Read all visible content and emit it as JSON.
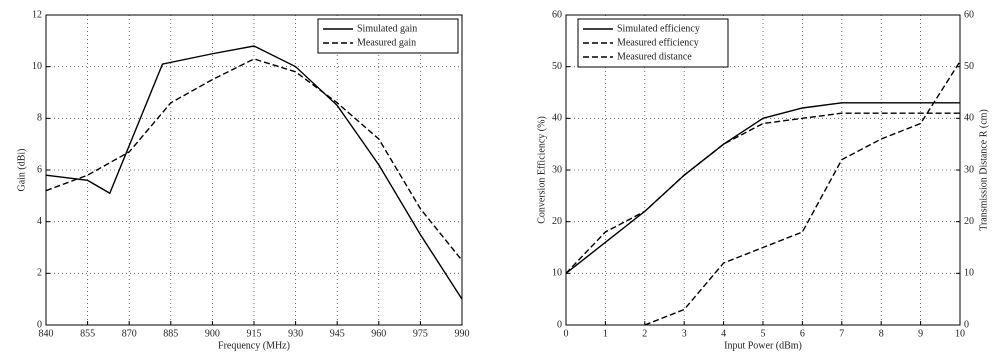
{
  "chart_data": [
    {
      "type": "line",
      "x_label": "Frequency (MHz)",
      "y_label": "Gain (dBi)",
      "xlim": [
        840,
        990
      ],
      "xticks": [
        840,
        855,
        870,
        885,
        900,
        915,
        930,
        945,
        960,
        975,
        990
      ],
      "ylim": [
        0,
        12
      ],
      "yticks": [
        0,
        2,
        4,
        6,
        8,
        10,
        12
      ],
      "grid": true,
      "legend": "upper right",
      "series": [
        {
          "name": "Simulated gain",
          "color": "#000000",
          "line_style": "solid",
          "x": [
            840,
            855,
            863,
            882,
            900,
            915,
            930,
            945,
            960,
            975,
            990
          ],
          "values": [
            5.8,
            5.6,
            5.1,
            10.1,
            10.5,
            10.8,
            10.0,
            8.5,
            6.2,
            3.5,
            1.0
          ]
        },
        {
          "name": "Measured gain",
          "color": "#000000",
          "line_style": "dashed",
          "x": [
            840,
            855,
            870,
            885,
            900,
            915,
            930,
            945,
            960,
            975,
            990
          ],
          "values": [
            5.2,
            5.8,
            6.7,
            8.6,
            9.5,
            10.3,
            9.8,
            8.6,
            7.2,
            4.5,
            2.5
          ]
        }
      ]
    },
    {
      "type": "line",
      "x_label": "Input Power (dBm)",
      "y_label": "Conversion Efficiency (%)",
      "y2_label": "Transmission Distance R (cm)",
      "xlim": [
        0,
        10
      ],
      "xticks": [
        0,
        1,
        2,
        3,
        4,
        5,
        6,
        7,
        8,
        9,
        10
      ],
      "ylim": [
        0,
        60
      ],
      "yticks": [
        0,
        10,
        20,
        30,
        40,
        50,
        60
      ],
      "y2lim": [
        0,
        60
      ],
      "y2ticks": [
        0,
        10,
        20,
        30,
        40,
        50,
        60
      ],
      "grid": true,
      "legend": "upper left",
      "series": [
        {
          "name": "Simulated efficiency",
          "color": "#000000",
          "line_style": "solid",
          "x": [
            0,
            1,
            2,
            3,
            4,
            5,
            6,
            7,
            8,
            9,
            10
          ],
          "values": [
            10,
            16,
            22,
            29,
            35,
            40,
            42,
            43,
            43,
            43,
            43
          ]
        },
        {
          "name": "Measured efficiency",
          "color": "#000000",
          "line_style": "dashed",
          "x": [
            0,
            1,
            2,
            3,
            4,
            5,
            6,
            7,
            8,
            9,
            10
          ],
          "values": [
            10,
            18,
            22,
            29,
            35,
            39,
            40,
            41,
            41,
            41,
            41
          ]
        },
        {
          "name": "Measured distance",
          "color": "#000000",
          "line_style": "dashed",
          "axis": "y2",
          "x": [
            2,
            3,
            4,
            5,
            6,
            7,
            8,
            9,
            10
          ],
          "values": [
            0,
            3,
            12,
            15,
            18,
            32,
            36,
            39,
            51
          ]
        }
      ]
    }
  ]
}
